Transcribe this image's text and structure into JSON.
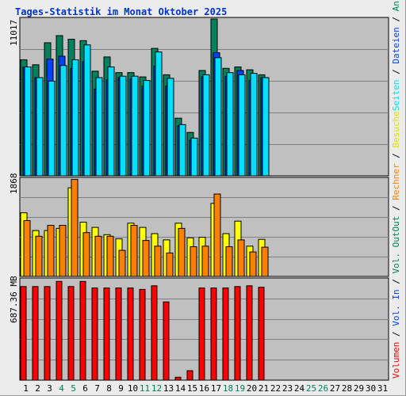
{
  "title": "Tages-Statistik im Monat Oktober 2025",
  "colors": {
    "background": "#ececec",
    "plot": "#c0c0c0",
    "grid": "#808080",
    "anfragen": "#00805c",
    "dateien": "#0040ff",
    "seiten": "#00e0ff",
    "besuche": "#ffff00",
    "rechner": "#ff8000",
    "volumen": "#ff0000",
    "title": "#0033cc",
    "weekend": "#00805c"
  },
  "legend": {
    "top": [
      {
        "label": "Anfragen",
        "color": "#00805c"
      },
      {
        "label": "Dateien",
        "color": "#0040ff"
      },
      {
        "label": "Seiten",
        "color": "#00e0ff"
      }
    ],
    "mid": [
      {
        "label": "Besuche",
        "color": "#ffff00"
      },
      {
        "label": "Rechner",
        "color": "#ff8000"
      },
      {
        "label": "Out",
        "color": "#00805c"
      }
    ],
    "bottom": [
      {
        "label": "Vol. Out",
        "color": "#00805c"
      },
      {
        "label": "Vol. In",
        "color": "#0040ff"
      },
      {
        "label": "Volumen",
        "color": "#ff0000"
      }
    ]
  },
  "chart_data": [
    {
      "type": "bar",
      "panel": "top",
      "ymax_label": "11017",
      "ylim": [
        0,
        11017
      ],
      "x": [
        1,
        2,
        3,
        4,
        5,
        6,
        7,
        8,
        9,
        10,
        11,
        12,
        13,
        14,
        15,
        16,
        17,
        18,
        19,
        20,
        21,
        22,
        23,
        24,
        25,
        26,
        27,
        28,
        29,
        30,
        31
      ],
      "weekend_days": [
        4,
        5,
        11,
        12,
        18,
        19,
        25,
        26
      ],
      "series": [
        {
          "name": "Anfragen",
          "values": [
            8150,
            7800,
            9350,
            9850,
            9600,
            9500,
            7350,
            8350,
            7250,
            7250,
            6950,
            8950,
            7100,
            4050,
            3050,
            7400,
            11017,
            7550,
            7650,
            7450,
            7100,
            0,
            0,
            0,
            0,
            0,
            0,
            0,
            0,
            0,
            0
          ]
        },
        {
          "name": "Dateien",
          "values": [
            7650,
            6900,
            8200,
            8400,
            7550,
            8000,
            6100,
            6750,
            6900,
            6800,
            6300,
            7700,
            6300,
            3500,
            2500,
            6950,
            8650,
            7000,
            7400,
            6700,
            6900,
            0,
            0,
            0,
            0,
            0,
            0,
            0,
            0,
            0,
            0
          ]
        },
        {
          "name": "Seiten",
          "values": [
            7650,
            6900,
            6650,
            7750,
            8150,
            9200,
            6900,
            7650,
            7000,
            7000,
            6700,
            8700,
            6850,
            3600,
            2650,
            7100,
            8300,
            7250,
            7100,
            7200,
            6900,
            0,
            0,
            0,
            0,
            0,
            0,
            0,
            0,
            0,
            0
          ]
        }
      ]
    },
    {
      "type": "bar",
      "panel": "middle",
      "ymax_label": "1868",
      "ylim": [
        0,
        1868
      ],
      "x": [
        1,
        2,
        3,
        4,
        5,
        6,
        7,
        8,
        9,
        10,
        11,
        12,
        13,
        14,
        15,
        16,
        17,
        18,
        19,
        20,
        21,
        22,
        23,
        24,
        25,
        26,
        27,
        28,
        29,
        30,
        31
      ],
      "series": [
        {
          "name": "Besuche",
          "values": [
            1220,
            880,
            880,
            920,
            1700,
            1040,
            940,
            800,
            720,
            1020,
            940,
            820,
            700,
            1020,
            740,
            750,
            1400,
            820,
            1060,
            580,
            710,
            0,
            0,
            0,
            0,
            0,
            0,
            0,
            0,
            0,
            0
          ]
        },
        {
          "name": "Rechner",
          "values": [
            1070,
            770,
            980,
            980,
            1860,
            840,
            770,
            770,
            500,
            980,
            690,
            580,
            450,
            920,
            570,
            580,
            1580,
            570,
            700,
            470,
            560,
            0,
            0,
            0,
            0,
            0,
            0,
            0,
            0,
            0,
            0
          ]
        }
      ]
    },
    {
      "type": "bar",
      "panel": "bottom",
      "ymax_label": "687.36 MB",
      "unit": "MB",
      "ylim": [
        0,
        687.36
      ],
      "x": [
        1,
        2,
        3,
        4,
        5,
        6,
        7,
        8,
        9,
        10,
        11,
        12,
        13,
        14,
        15,
        16,
        17,
        18,
        19,
        20,
        21,
        22,
        23,
        24,
        25,
        26,
        27,
        28,
        29,
        30,
        31
      ],
      "series": [
        {
          "name": "Volumen",
          "values": [
            640,
            640,
            640,
            675,
            640,
            675,
            630,
            630,
            630,
            630,
            620,
            645,
            535,
            20,
            65,
            630,
            630,
            630,
            640,
            645,
            635,
            0,
            0,
            0,
            0,
            0,
            0,
            0,
            0,
            0,
            0
          ]
        }
      ]
    }
  ]
}
